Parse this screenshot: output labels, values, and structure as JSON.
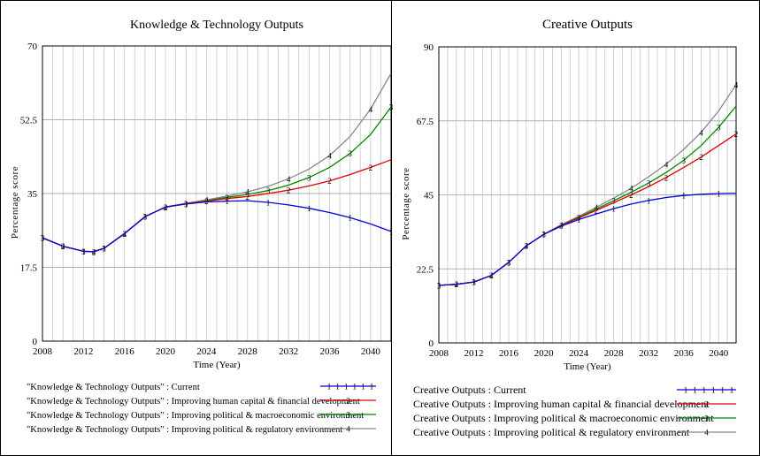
{
  "chart_data": [
    {
      "type": "line",
      "title": "Knowledge & Technology Outputs",
      "xlabel": "Time (Year)",
      "ylabel": "Percentage score",
      "xlim": [
        2008,
        2042
      ],
      "ylim": [
        0,
        70
      ],
      "x_ticks": [
        "2008",
        "2012",
        "2016",
        "2020",
        "2024",
        "2028",
        "2032",
        "2036",
        "2040"
      ],
      "y_ticks": [
        "0",
        "17.5",
        "35",
        "52.5",
        "70"
      ],
      "grid": true,
      "legend_position": "bottom",
      "series": [
        {
          "name": "\"Knowledge & Technology Outputs\" : Current",
          "marker": "1",
          "color": "#0000dd",
          "x": [
            2008,
            2010,
            2012,
            2013,
            2014,
            2016,
            2018,
            2020,
            2022,
            2024,
            2026,
            2028,
            2030,
            2032,
            2034,
            2036,
            2038,
            2040,
            2042
          ],
          "y": [
            24.5,
            22.5,
            21.3,
            21.2,
            22.0,
            25.5,
            29.5,
            31.8,
            32.5,
            33.0,
            33.2,
            33.3,
            32.9,
            32.3,
            31.5,
            30.5,
            29.3,
            27.8,
            26.0
          ]
        },
        {
          "name": "\"Knowledge & Technology Outputs\" : Improving human capital & financial development",
          "marker": "2",
          "color": "#dd0000",
          "x": [
            2008,
            2010,
            2012,
            2013,
            2014,
            2016,
            2018,
            2020,
            2022,
            2024,
            2026,
            2028,
            2030,
            2032,
            2034,
            2036,
            2038,
            2040,
            2042
          ],
          "y": [
            24.5,
            22.5,
            21.3,
            21.2,
            22.0,
            25.5,
            29.5,
            31.8,
            32.6,
            33.2,
            33.8,
            34.3,
            35.0,
            35.8,
            36.8,
            38.0,
            39.5,
            41.2,
            43.0
          ]
        },
        {
          "name": "\"Knowledge & Technology Outputs\" : Improving political & macroeconomic environment",
          "marker": "3",
          "color": "#008800",
          "x": [
            2008,
            2010,
            2012,
            2013,
            2014,
            2016,
            2018,
            2020,
            2022,
            2024,
            2026,
            2028,
            2030,
            2032,
            2034,
            2036,
            2038,
            2040,
            2042
          ],
          "y": [
            24.5,
            22.5,
            21.3,
            21.2,
            22.0,
            25.5,
            29.5,
            31.8,
            32.6,
            33.3,
            34.1,
            34.8,
            35.7,
            37.0,
            38.8,
            41.2,
            44.5,
            49.0,
            55.5
          ]
        },
        {
          "name": "\"Knowledge & Technology Outputs\" : Improving political & regulatory environment",
          "marker": "4",
          "color": "#888888",
          "x": [
            2008,
            2010,
            2012,
            2013,
            2014,
            2016,
            2018,
            2020,
            2022,
            2024,
            2026,
            2028,
            2030,
            2032,
            2034,
            2036,
            2038,
            2040,
            2042
          ],
          "y": [
            24.5,
            22.5,
            21.3,
            21.2,
            22.0,
            25.5,
            29.5,
            31.8,
            32.7,
            33.5,
            34.4,
            35.4,
            36.7,
            38.5,
            40.8,
            44.0,
            48.5,
            55.0,
            63.5
          ]
        }
      ]
    },
    {
      "type": "line",
      "title": "Creative Outputs",
      "xlabel": "Time (Year)",
      "ylabel": "Percentage score",
      "xlim": [
        2008,
        2042
      ],
      "ylim": [
        0,
        90
      ],
      "x_ticks": [
        "2008",
        "2012",
        "2016",
        "2020",
        "2024",
        "2028",
        "2032",
        "2036",
        "2040"
      ],
      "y_ticks": [
        "0",
        "22.5",
        "45",
        "67.5",
        "90"
      ],
      "grid": true,
      "legend_position": "bottom",
      "series": [
        {
          "name": "Creative Outputs : Current",
          "marker": "1",
          "color": "#0000dd",
          "x": [
            2008,
            2010,
            2012,
            2014,
            2016,
            2018,
            2020,
            2022,
            2024,
            2026,
            2028,
            2030,
            2032,
            2034,
            2036,
            2038,
            2040,
            2042
          ],
          "y": [
            17.5,
            17.8,
            18.5,
            20.5,
            24.5,
            29.5,
            33.0,
            35.5,
            37.5,
            39.2,
            40.8,
            42.2,
            43.3,
            44.2,
            44.8,
            45.2,
            45.4,
            45.5
          ]
        },
        {
          "name": "Creative Outputs : Improving human capital & financial development",
          "marker": "2",
          "color": "#dd0000",
          "x": [
            2008,
            2010,
            2012,
            2014,
            2016,
            2018,
            2020,
            2022,
            2024,
            2026,
            2028,
            2030,
            2032,
            2034,
            2036,
            2038,
            2040,
            2042
          ],
          "y": [
            17.5,
            17.8,
            18.5,
            20.5,
            24.5,
            29.5,
            33.0,
            35.7,
            38.0,
            40.3,
            42.6,
            45.0,
            47.5,
            50.3,
            53.3,
            56.5,
            60.0,
            63.5
          ]
        },
        {
          "name": "Creative Outputs : Improving political & macroeconomic environment",
          "marker": "3",
          "color": "#008800",
          "x": [
            2008,
            2010,
            2012,
            2014,
            2016,
            2018,
            2020,
            2022,
            2024,
            2026,
            2028,
            2030,
            2032,
            2034,
            2036,
            2038,
            2040,
            2042
          ],
          "y": [
            17.5,
            17.8,
            18.5,
            20.5,
            24.5,
            29.5,
            33.0,
            35.8,
            38.2,
            40.7,
            43.2,
            45.8,
            48.6,
            51.8,
            55.5,
            60.0,
            65.5,
            72.0
          ]
        },
        {
          "name": "Creative Outputs : Improving political & regulatory environment",
          "marker": "4",
          "color": "#888888",
          "x": [
            2008,
            2010,
            2012,
            2014,
            2016,
            2018,
            2020,
            2022,
            2024,
            2026,
            2028,
            2030,
            2032,
            2034,
            2036,
            2038,
            2040,
            2042
          ],
          "y": [
            17.5,
            17.8,
            18.5,
            20.5,
            24.5,
            29.5,
            33.0,
            35.9,
            38.5,
            41.2,
            44.0,
            47.0,
            50.5,
            54.3,
            58.8,
            64.0,
            70.5,
            78.5
          ]
        }
      ]
    }
  ]
}
